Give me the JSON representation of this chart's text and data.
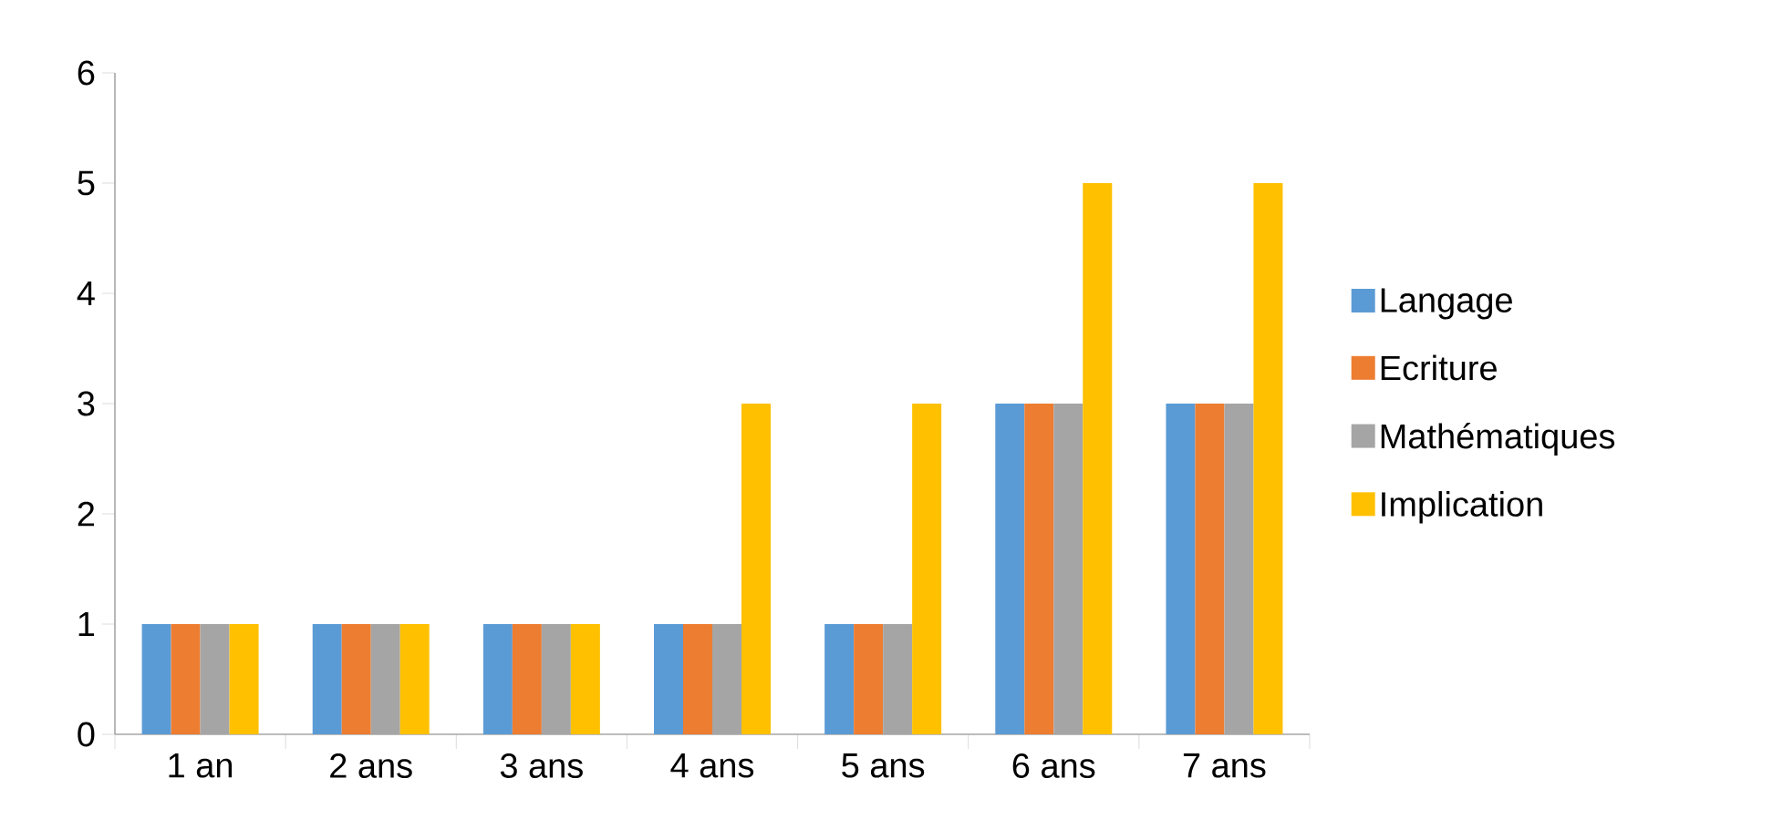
{
  "chart_data": {
    "type": "bar",
    "categories": [
      "1 an",
      "2 ans",
      "3 ans",
      "4 ans",
      "5 ans",
      "6 ans",
      "7 ans"
    ],
    "series": [
      {
        "name": "Langage",
        "color": "#5b9bd5",
        "values": [
          1,
          1,
          1,
          1,
          1,
          3,
          3
        ]
      },
      {
        "name": "Ecriture",
        "color": "#ed7d31",
        "values": [
          1,
          1,
          1,
          1,
          1,
          3,
          3
        ]
      },
      {
        "name": "Mathématiques",
        "color": "#a5a5a5",
        "values": [
          1,
          1,
          1,
          1,
          1,
          3,
          3
        ]
      },
      {
        "name": "Implication",
        "color": "#ffc000",
        "values": [
          1,
          1,
          1,
          3,
          3,
          5,
          5
        ]
      }
    ],
    "ylim": [
      0,
      6
    ],
    "yticks": [
      0,
      1,
      2,
      3,
      4,
      5,
      6
    ],
    "grid": false,
    "legend": "right"
  }
}
